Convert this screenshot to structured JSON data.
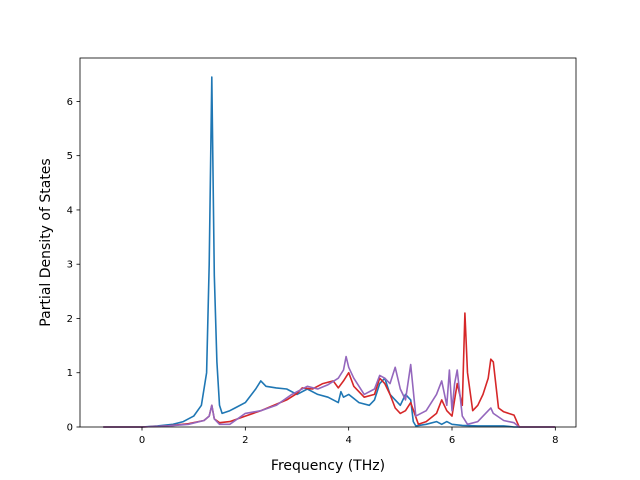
{
  "chart_data": {
    "type": "line",
    "xlabel": "Frequency (THz)",
    "ylabel": "Partial Density of States",
    "xlim": [
      -1.2,
      8.4
    ],
    "ylim": [
      0,
      6.8
    ],
    "xticks": [
      0,
      2,
      4,
      6,
      8
    ],
    "yticks": [
      0,
      1,
      2,
      3,
      4,
      5,
      6
    ],
    "grid": false,
    "series": [
      {
        "color": "#1f77b4",
        "points": [
          [
            -0.75,
            0
          ],
          [
            0,
            0
          ],
          [
            0.3,
            0.02
          ],
          [
            0.6,
            0.05
          ],
          [
            0.8,
            0.1
          ],
          [
            1.0,
            0.2
          ],
          [
            1.15,
            0.4
          ],
          [
            1.25,
            1.0
          ],
          [
            1.3,
            3.0
          ],
          [
            1.35,
            6.45
          ],
          [
            1.4,
            2.8
          ],
          [
            1.45,
            1.2
          ],
          [
            1.5,
            0.4
          ],
          [
            1.55,
            0.25
          ],
          [
            1.7,
            0.3
          ],
          [
            1.8,
            0.35
          ],
          [
            2.0,
            0.45
          ],
          [
            2.2,
            0.7
          ],
          [
            2.3,
            0.85
          ],
          [
            2.4,
            0.75
          ],
          [
            2.6,
            0.72
          ],
          [
            2.8,
            0.7
          ],
          [
            3.0,
            0.6
          ],
          [
            3.2,
            0.7
          ],
          [
            3.4,
            0.6
          ],
          [
            3.6,
            0.55
          ],
          [
            3.8,
            0.45
          ],
          [
            3.85,
            0.65
          ],
          [
            3.9,
            0.55
          ],
          [
            4.0,
            0.6
          ],
          [
            4.2,
            0.45
          ],
          [
            4.4,
            0.4
          ],
          [
            4.5,
            0.5
          ],
          [
            4.6,
            0.8
          ],
          [
            4.7,
            0.9
          ],
          [
            4.8,
            0.6
          ],
          [
            4.9,
            0.5
          ],
          [
            5.0,
            0.4
          ],
          [
            5.1,
            0.6
          ],
          [
            5.2,
            0.5
          ],
          [
            5.25,
            0.1
          ],
          [
            5.3,
            0.02
          ],
          [
            5.5,
            0.05
          ],
          [
            5.7,
            0.1
          ],
          [
            5.8,
            0.05
          ],
          [
            5.9,
            0.1
          ],
          [
            6.0,
            0.05
          ],
          [
            6.2,
            0.03
          ],
          [
            6.5,
            0.02
          ],
          [
            7.0,
            0.02
          ],
          [
            7.2,
            0.0
          ],
          [
            8.0,
            0
          ]
        ]
      },
      {
        "color": "#d62728",
        "points": [
          [
            -0.75,
            0
          ],
          [
            0,
            0
          ],
          [
            0.5,
            0.02
          ],
          [
            0.9,
            0.06
          ],
          [
            1.2,
            0.12
          ],
          [
            1.3,
            0.2
          ],
          [
            1.35,
            0.4
          ],
          [
            1.4,
            0.15
          ],
          [
            1.5,
            0.08
          ],
          [
            1.7,
            0.1
          ],
          [
            2.0,
            0.2
          ],
          [
            2.3,
            0.3
          ],
          [
            2.6,
            0.42
          ],
          [
            2.8,
            0.5
          ],
          [
            3.0,
            0.62
          ],
          [
            3.1,
            0.72
          ],
          [
            3.3,
            0.7
          ],
          [
            3.5,
            0.8
          ],
          [
            3.7,
            0.85
          ],
          [
            3.8,
            0.72
          ],
          [
            3.9,
            0.85
          ],
          [
            4.0,
            1.0
          ],
          [
            4.1,
            0.75
          ],
          [
            4.3,
            0.55
          ],
          [
            4.5,
            0.6
          ],
          [
            4.6,
            0.9
          ],
          [
            4.7,
            0.8
          ],
          [
            4.8,
            0.6
          ],
          [
            4.9,
            0.35
          ],
          [
            5.0,
            0.25
          ],
          [
            5.1,
            0.3
          ],
          [
            5.2,
            0.45
          ],
          [
            5.35,
            0.05
          ],
          [
            5.5,
            0.1
          ],
          [
            5.7,
            0.25
          ],
          [
            5.8,
            0.5
          ],
          [
            5.9,
            0.3
          ],
          [
            6.0,
            0.2
          ],
          [
            6.1,
            0.8
          ],
          [
            6.2,
            0.4
          ],
          [
            6.25,
            2.1
          ],
          [
            6.3,
            1.0
          ],
          [
            6.4,
            0.3
          ],
          [
            6.5,
            0.4
          ],
          [
            6.6,
            0.6
          ],
          [
            6.7,
            0.9
          ],
          [
            6.75,
            1.25
          ],
          [
            6.8,
            1.2
          ],
          [
            6.9,
            0.35
          ],
          [
            7.0,
            0.28
          ],
          [
            7.2,
            0.22
          ],
          [
            7.3,
            0.0
          ],
          [
            8.0,
            0
          ]
        ]
      },
      {
        "color": "#9467bd",
        "points": [
          [
            -0.75,
            0
          ],
          [
            0,
            0
          ],
          [
            0.5,
            0.02
          ],
          [
            0.9,
            0.05
          ],
          [
            1.2,
            0.12
          ],
          [
            1.3,
            0.2
          ],
          [
            1.35,
            0.4
          ],
          [
            1.4,
            0.15
          ],
          [
            1.5,
            0.05
          ],
          [
            1.7,
            0.05
          ],
          [
            2.0,
            0.25
          ],
          [
            2.3,
            0.3
          ],
          [
            2.6,
            0.4
          ],
          [
            2.9,
            0.6
          ],
          [
            3.0,
            0.65
          ],
          [
            3.2,
            0.75
          ],
          [
            3.4,
            0.7
          ],
          [
            3.6,
            0.78
          ],
          [
            3.8,
            0.9
          ],
          [
            3.9,
            1.05
          ],
          [
            3.95,
            1.3
          ],
          [
            4.0,
            1.1
          ],
          [
            4.1,
            0.9
          ],
          [
            4.3,
            0.6
          ],
          [
            4.5,
            0.7
          ],
          [
            4.6,
            0.95
          ],
          [
            4.7,
            0.9
          ],
          [
            4.8,
            0.8
          ],
          [
            4.9,
            1.1
          ],
          [
            5.0,
            0.7
          ],
          [
            5.1,
            0.5
          ],
          [
            5.2,
            1.15
          ],
          [
            5.3,
            0.2
          ],
          [
            5.5,
            0.3
          ],
          [
            5.7,
            0.6
          ],
          [
            5.8,
            0.85
          ],
          [
            5.9,
            0.4
          ],
          [
            5.95,
            1.05
          ],
          [
            6.0,
            0.3
          ],
          [
            6.05,
            0.8
          ],
          [
            6.1,
            1.05
          ],
          [
            6.2,
            0.2
          ],
          [
            6.3,
            0.05
          ],
          [
            6.5,
            0.1
          ],
          [
            6.7,
            0.3
          ],
          [
            6.75,
            0.35
          ],
          [
            6.8,
            0.25
          ],
          [
            7.0,
            0.12
          ],
          [
            7.2,
            0.08
          ],
          [
            7.3,
            0
          ],
          [
            8.0,
            0
          ]
        ]
      }
    ]
  }
}
